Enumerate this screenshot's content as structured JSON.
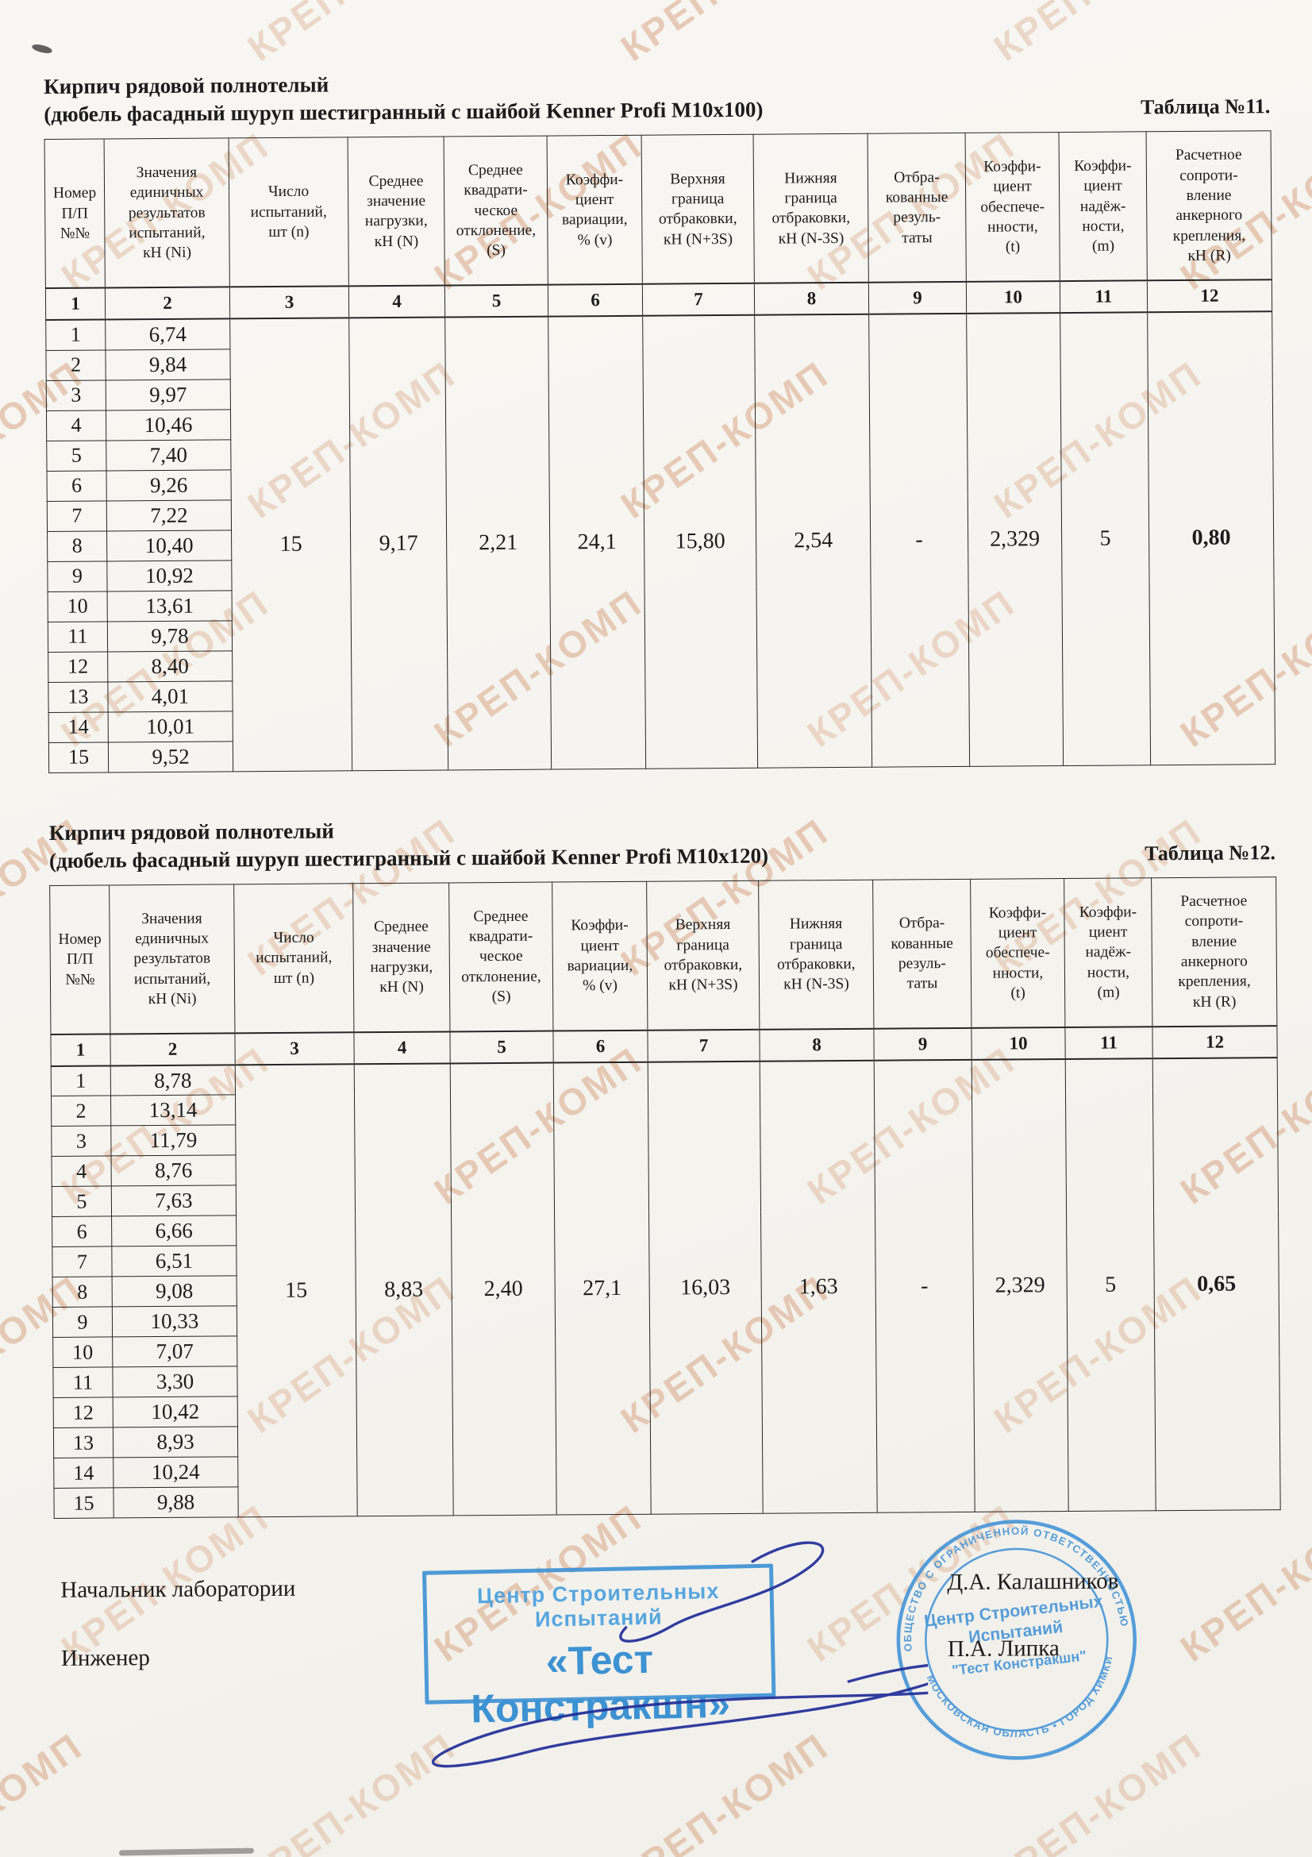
{
  "watermark": {
    "text": "КРЕП-КОМП",
    "color": "#d9a98a"
  },
  "colors": {
    "stamp_blue": "#4093d6",
    "stamp_text_blue": "#2e8ad0",
    "ink_blue": "#26339a"
  },
  "tables": [
    {
      "id": "11",
      "title_line1": "Кирпич рядовой полнотелый",
      "title_line2": "(дюбель фасадный шуруп шестигранный с шайбой Kenner Profi M10x100)",
      "table_label": "Таблица №11.",
      "headers": [
        "Номер\nП/П\n№№",
        "Значения\nединичных\nрезультатов\nиспытаний,\nкН (Ni)",
        "Число\nиспытаний,\nшт (n)",
        "Среднее\nзначение\nнагрузки,\nкН (N)",
        "Среднее\nквадрати-\nческое\nотклонение,\n(S)",
        "Коэффи-\nциент\nвариации,\n% (v)",
        "Верхняя\nграница\nотбраковки,\nкН (N+3S)",
        "Нижняя\nграница\nотбраковки,\nкН (N-3S)",
        "Отбра-\nкованные\nрезуль-\nтаты",
        "Коэффи-\nциент\nобеспече-\nнности,\n(t)",
        "Коэффи-\nциент\nнадёж-\nности,\n(m)",
        "Расчетное\nсопроти-\nвление\nанкерного\nкрепления,\nкН (R)"
      ],
      "column_numbers": [
        "1",
        "2",
        "3",
        "4",
        "5",
        "6",
        "7",
        "8",
        "9",
        "10",
        "11",
        "12"
      ],
      "row_numbers": [
        "1",
        "2",
        "3",
        "4",
        "5",
        "6",
        "7",
        "8",
        "9",
        "10",
        "11",
        "12",
        "13",
        "14",
        "15"
      ],
      "rows": [
        "6,74",
        "9,84",
        "9,97",
        "10,46",
        "7,40",
        "9,26",
        "7,22",
        "10,40",
        "10,92",
        "13,61",
        "9,78",
        "8,40",
        "4,01",
        "10,01",
        "9,52"
      ],
      "summary": [
        "15",
        "9,17",
        "2,21",
        "24,1",
        "15,80",
        "2,54",
        "-",
        "2,329",
        "5",
        "0,80"
      ]
    },
    {
      "id": "12",
      "title_line1": "Кирпич рядовой полнотелый",
      "title_line2": "(дюбель фасадный шуруп шестигранный с шайбой Kenner Profi M10x120)",
      "table_label": "Таблица №12.",
      "headers": [
        "Номер\nП/П\n№№",
        "Значения\nединичных\nрезультатов\nиспытаний,\nкН (Ni)",
        "Число\nиспытаний,\nшт (n)",
        "Среднее\nзначение\nнагрузки,\nкН (N)",
        "Среднее\nквадрати-\nческое\nотклонение,\n(S)",
        "Коэффи-\nциент\nвариации,\n% (v)",
        "Верхняя\nграница\nотбраковки,\nкН (N+3S)",
        "Нижняя\nграница\nотбраковки,\nкН (N-3S)",
        "Отбра-\nкованные\nрезуль-\nтаты",
        "Коэффи-\nциент\nобеспече-\nнности,\n(t)",
        "Коэффи-\nциент\nнадёж-\nности,\n(m)",
        "Расчетное\nсопроти-\nвление\nанкерного\nкрепления,\nкН (R)"
      ],
      "column_numbers": [
        "1",
        "2",
        "3",
        "4",
        "5",
        "6",
        "7",
        "8",
        "9",
        "10",
        "11",
        "12"
      ],
      "row_numbers": [
        "1",
        "2",
        "3",
        "4",
        "5",
        "6",
        "7",
        "8",
        "9",
        "10",
        "11",
        "12",
        "13",
        "14",
        "15"
      ],
      "rows": [
        "8,78",
        "13,14",
        "11,79",
        "8,76",
        "7,63",
        "6,66",
        "6,51",
        "9,08",
        "10,33",
        "7,07",
        "3,30",
        "10,42",
        "8,93",
        "10,24",
        "9,88"
      ],
      "summary": [
        "15",
        "8,83",
        "2,40",
        "27,1",
        "16,03",
        "1,63",
        "-",
        "2,329",
        "5",
        "0,65"
      ]
    }
  ],
  "footer": {
    "role1": "Начальник лаборатории",
    "role2": "Инженер",
    "name1": "Д.А. Калашников",
    "name2": "П.А. Липка",
    "stamp_rect": {
      "line1": "Центр Строительных Испытаний",
      "line2": "«Тест Констракшн»"
    },
    "stamp_round": {
      "ring_top": "ОБЩЕСТВО С ОГРАНИЧЕННОЙ ОТВЕТСТВЕННОСТЬЮ",
      "ring_bottom": "МОСКОВСКАЯ ОБЛАСТЬ  •  ГОРОД ХИМКИ",
      "center_line1": "Центр Строительных",
      "center_line2": "Испытаний",
      "center_line3": "\"Тест Констракшн\""
    }
  }
}
